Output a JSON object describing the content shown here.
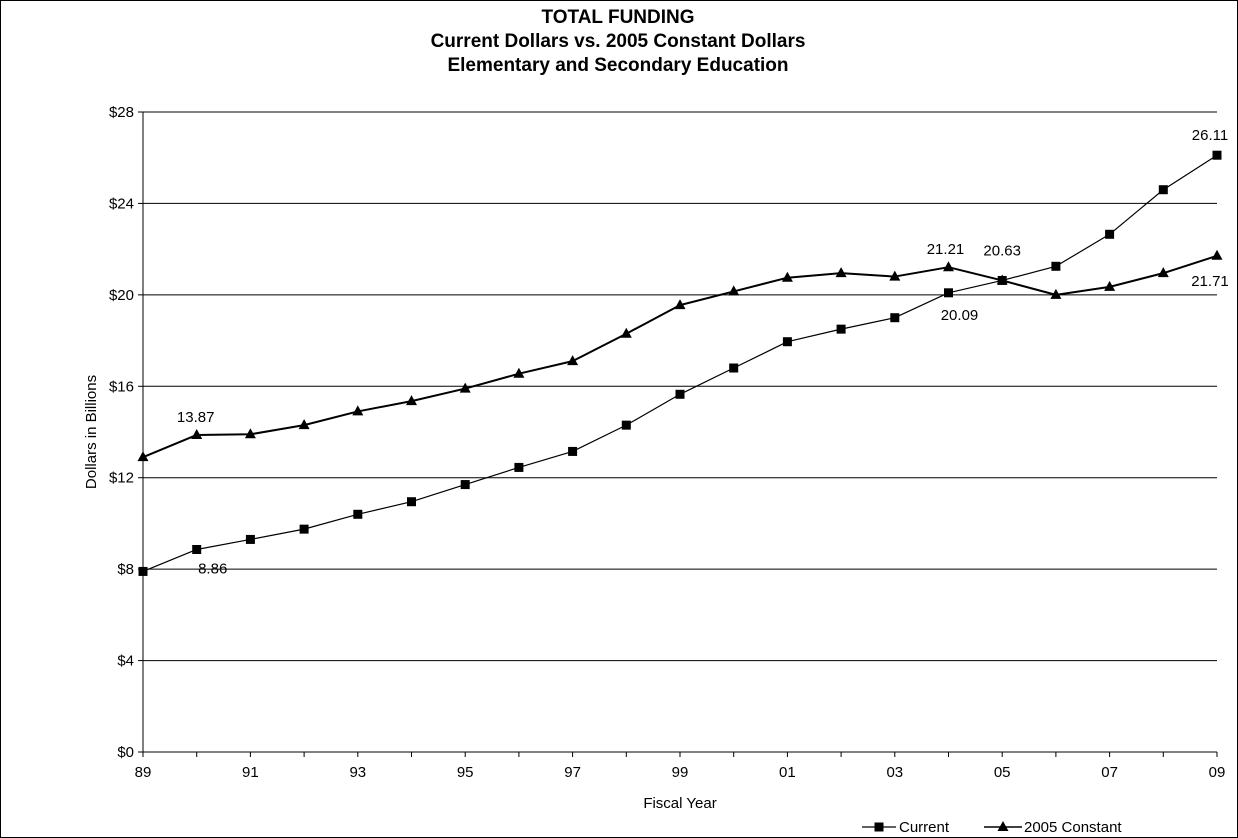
{
  "chart_data": {
    "type": "line",
    "title_lines": [
      "TOTAL FUNDING",
      "Current Dollars vs. 2005 Constant Dollars",
      "Elementary and Secondary Education"
    ],
    "xlabel": "Fiscal Year",
    "ylabel": "Dollars in Billions",
    "x": [
      1989,
      1990,
      1991,
      1992,
      1993,
      1994,
      1995,
      1996,
      1997,
      1998,
      1999,
      2000,
      2001,
      2002,
      2003,
      2004,
      2005,
      2006,
      2007,
      2008,
      2009
    ],
    "x_tick_labels": [
      "89",
      "91",
      "93",
      "95",
      "97",
      "99",
      "01",
      "03",
      "05",
      "07",
      "09"
    ],
    "y_tick_labels": [
      "$0",
      "$4",
      "$8",
      "$12",
      "$16",
      "$20",
      "$24",
      "$28"
    ],
    "ylim": [
      0,
      28
    ],
    "y_tick_step": 4,
    "grid": "horizontal",
    "legend_position": "bottom-right",
    "series": [
      {
        "name": "Current",
        "marker": "square",
        "color": "#000000",
        "values": [
          7.9,
          8.86,
          9.3,
          9.75,
          10.4,
          10.95,
          11.7,
          12.45,
          13.15,
          14.3,
          15.65,
          16.8,
          17.95,
          18.5,
          19.0,
          20.09,
          20.63,
          21.25,
          22.65,
          24.6,
          26.11
        ],
        "annotations": [
          {
            "x": 1990,
            "label": "8.86"
          },
          {
            "x": 2004,
            "label": "20.09"
          },
          {
            "x": 2005,
            "label": "20.63"
          },
          {
            "x": 2009,
            "label": "26.11"
          }
        ]
      },
      {
        "name": "2005 Constant",
        "marker": "triangle",
        "color": "#000000",
        "values": [
          12.9,
          13.87,
          13.9,
          14.3,
          14.9,
          15.35,
          15.9,
          16.55,
          17.1,
          18.3,
          19.55,
          20.15,
          20.75,
          20.95,
          20.8,
          21.21,
          20.63,
          20.0,
          20.35,
          20.95,
          21.71
        ],
        "annotations": [
          {
            "x": 1990,
            "label": "13.87"
          },
          {
            "x": 2004,
            "label": "21.21"
          },
          {
            "x": 2009,
            "label": "21.71"
          }
        ]
      }
    ]
  }
}
